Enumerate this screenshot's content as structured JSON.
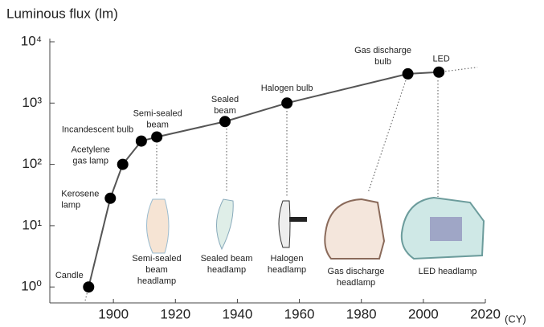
{
  "chart_data": {
    "type": "line",
    "y_label": "Luminous flux (lm)",
    "x_unit": "(CY)",
    "x": [
      1892,
      1899,
      1903,
      1909,
      1914,
      1936,
      1956,
      1995,
      2005
    ],
    "values": [
      1,
      28,
      100,
      240,
      280,
      500,
      1000,
      3000,
      3200
    ],
    "point_labels": [
      [
        "Candle"
      ],
      [
        "Kerosene",
        "lamp"
      ],
      [
        "Acetylene",
        "gas lamp"
      ],
      [
        "Incandescent bulb"
      ],
      [
        "Semi-sealed",
        "beam"
      ],
      [
        "Sealed",
        "beam"
      ],
      [
        "Halogen bulb"
      ],
      [
        "Gas discharge",
        "bulb"
      ],
      [
        "LED"
      ]
    ],
    "headlamps": [
      [
        "Semi-sealed",
        "beam",
        "headlamp"
      ],
      [
        "Sealed beam",
        "headlamp"
      ],
      [
        "Halogen",
        "headlamp"
      ],
      [
        "Gas discharge",
        "headlamp"
      ],
      [
        "LED headlamp"
      ]
    ],
    "xlim": [
      1880,
      2020
    ],
    "xticks": [
      1900,
      1920,
      1940,
      1960,
      1980,
      2000,
      2020
    ],
    "ylim": [
      0.55,
      10000
    ],
    "log_scale": true,
    "yticks": [
      {
        "value": 1,
        "label": "10⁰"
      },
      {
        "value": 10,
        "label": "10¹"
      },
      {
        "value": 100,
        "label": "10²"
      },
      {
        "value": 1000,
        "label": "10³"
      },
      {
        "value": 10000,
        "label": "10⁴"
      }
    ],
    "line_color": "#555555",
    "marker_color": "#000000"
  }
}
